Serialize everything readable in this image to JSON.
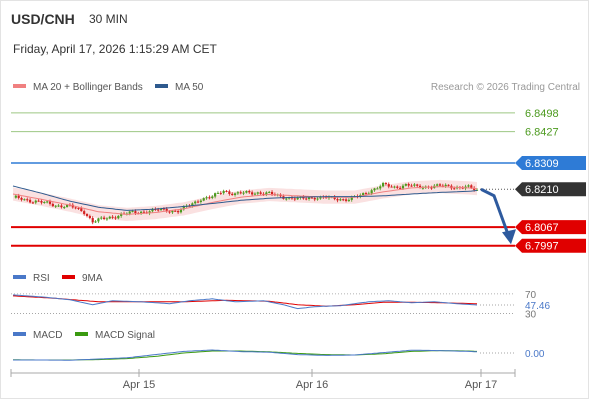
{
  "header": {
    "symbol": "USD/CNH",
    "timeframe": "30 MIN",
    "datetime": "Friday, April 17, 2026 1:15:29 AM CET",
    "credit": "Research © 2026 Trading Central"
  },
  "colors": {
    "ma20": "#f08080",
    "ma50": "#2e5a8e",
    "band_fill": "#f9d9d9",
    "resistance_green": "#4c9a1f",
    "pivot_blue": "#2e7bd6",
    "support_red": "#e00000",
    "last_price": "#333333",
    "arrow": "#2e5a9e",
    "candle_up": "#4c9a1f",
    "candle_down": "#d32020",
    "rsi": "#4a78c8",
    "rsi_ma": "#e00000",
    "macd": "#4a78c8",
    "macd_signal": "#3a9a10"
  },
  "chart_data": [
    {
      "type": "candlestick",
      "legend": [
        {
          "name": "MA 20 + Bollinger Bands",
          "color_key": "ma20"
        },
        {
          "name": "MA 50",
          "color_key": "ma50"
        }
      ],
      "x_tick_labels": [
        "Apr 15",
        "Apr 16",
        "Apr 17"
      ],
      "y_range": [
        6.7977,
        6.852
      ],
      "last_price": 6.821,
      "levels": [
        {
          "value": 6.8498,
          "label": "6.8498",
          "kind": "resistance_green"
        },
        {
          "value": 6.8427,
          "label": "6.8427",
          "kind": "resistance_green"
        },
        {
          "value": 6.8309,
          "label": "6.8309",
          "kind": "pivot_blue"
        },
        {
          "value": 6.8067,
          "label": "6.8067",
          "kind": "support_red"
        },
        {
          "value": 6.7997,
          "label": "6.7997",
          "kind": "support_red"
        }
      ],
      "last_label": "6.8210",
      "close_path": [
        [
          0,
          6.8178
        ],
        [
          5,
          6.817
        ],
        [
          10,
          6.816
        ],
        [
          15,
          6.815
        ],
        [
          20,
          6.8145
        ],
        [
          25,
          6.8125
        ],
        [
          28,
          6.8088
        ],
        [
          32,
          6.8098
        ],
        [
          38,
          6.8115
        ],
        [
          45,
          6.8125
        ],
        [
          52,
          6.8132
        ],
        [
          58,
          6.8128
        ],
        [
          62,
          6.8148
        ],
        [
          66,
          6.8175
        ],
        [
          70,
          6.818
        ],
        [
          74,
          6.8205
        ],
        [
          78,
          6.8192
        ],
        [
          82,
          6.8196
        ],
        [
          86,
          6.8198
        ],
        [
          90,
          6.8192
        ],
        [
          96,
          6.818
        ],
        [
          100,
          6.8172
        ],
        [
          106,
          6.818
        ],
        [
          112,
          6.8175
        ],
        [
          118,
          6.8172
        ],
        [
          122,
          6.8185
        ],
        [
          126,
          6.8208
        ],
        [
          130,
          6.8225
        ],
        [
          134,
          6.8218
        ],
        [
          138,
          6.8226
        ],
        [
          142,
          6.8218
        ],
        [
          148,
          6.8222
        ],
        [
          154,
          6.822
        ],
        [
          160,
          6.8216
        ],
        [
          163,
          6.8205
        ]
      ],
      "ma20_path": [
        [
          0,
          6.8192
        ],
        [
          10,
          6.8172
        ],
        [
          20,
          6.815
        ],
        [
          30,
          6.8125
        ],
        [
          40,
          6.8115
        ],
        [
          50,
          6.8122
        ],
        [
          60,
          6.8136
        ],
        [
          70,
          6.816
        ],
        [
          80,
          6.818
        ],
        [
          90,
          6.819
        ],
        [
          100,
          6.8185
        ],
        [
          110,
          6.818
        ],
        [
          120,
          6.818
        ],
        [
          130,
          6.82
        ],
        [
          140,
          6.8215
        ],
        [
          150,
          6.822
        ],
        [
          160,
          6.8215
        ],
        [
          163,
          6.8212
        ]
      ],
      "ma50_path": [
        [
          0,
          6.8222
        ],
        [
          10,
          6.8195
        ],
        [
          20,
          6.8165
        ],
        [
          30,
          6.8142
        ],
        [
          40,
          6.813
        ],
        [
          50,
          6.8135
        ],
        [
          60,
          6.8145
        ],
        [
          70,
          6.8156
        ],
        [
          80,
          6.8168
        ],
        [
          90,
          6.8176
        ],
        [
          100,
          6.818
        ],
        [
          110,
          6.8182
        ],
        [
          120,
          6.8182
        ],
        [
          130,
          6.8185
        ],
        [
          140,
          6.8192
        ],
        [
          150,
          6.8198
        ],
        [
          160,
          6.8202
        ],
        [
          163,
          6.8205
        ]
      ],
      "band_width": 0.0025,
      "forecast_arrow": {
        "from": 6.8208,
        "to": 6.804
      }
    },
    {
      "type": "line",
      "title": "RSI",
      "legend": [
        {
          "name": "RSI",
          "color_key": "rsi"
        },
        {
          "name": "9MA",
          "color_key": "rsi_ma"
        }
      ],
      "y_range": [
        25,
        80
      ],
      "reference_levels": [
        {
          "value": 70,
          "label": "70"
        },
        {
          "value": 30,
          "label": "30"
        }
      ],
      "last_value_label": "47.46",
      "rsi_path": [
        [
          0,
          68
        ],
        [
          10,
          64
        ],
        [
          20,
          58
        ],
        [
          28,
          48
        ],
        [
          35,
          56
        ],
        [
          45,
          54
        ],
        [
          55,
          50
        ],
        [
          62,
          56
        ],
        [
          70,
          60
        ],
        [
          78,
          54
        ],
        [
          88,
          56
        ],
        [
          95,
          48
        ],
        [
          100,
          40
        ],
        [
          106,
          44
        ],
        [
          115,
          46
        ],
        [
          125,
          54
        ],
        [
          132,
          56
        ],
        [
          140,
          52
        ],
        [
          148,
          54
        ],
        [
          156,
          50
        ],
        [
          163,
          47.46
        ]
      ],
      "rsi_ma_path": [
        [
          0,
          66
        ],
        [
          15,
          61
        ],
        [
          30,
          54
        ],
        [
          45,
          54
        ],
        [
          60,
          54
        ],
        [
          75,
          57
        ],
        [
          90,
          55
        ],
        [
          100,
          48
        ],
        [
          110,
          45
        ],
        [
          120,
          48
        ],
        [
          130,
          53
        ],
        [
          140,
          53
        ],
        [
          150,
          52
        ],
        [
          163,
          50
        ]
      ]
    },
    {
      "type": "line",
      "title": "MACD",
      "legend": [
        {
          "name": "MACD",
          "color_key": "macd"
        },
        {
          "name": "MACD Signal",
          "color_key": "macd_signal"
        }
      ],
      "y_range": [
        -0.0045,
        0.0045
      ],
      "zero_label": "0.00",
      "macd_path": [
        [
          0,
          -0.0035
        ],
        [
          10,
          -0.0035
        ],
        [
          20,
          -0.0036
        ],
        [
          30,
          -0.003
        ],
        [
          40,
          -0.0024
        ],
        [
          50,
          -0.0008
        ],
        [
          60,
          0.0008
        ],
        [
          70,
          0.0015
        ],
        [
          80,
          0.0007
        ],
        [
          90,
          0.0004
        ],
        [
          100,
          -0.0008
        ],
        [
          110,
          -0.0012
        ],
        [
          120,
          -0.001
        ],
        [
          130,
          0.0002
        ],
        [
          140,
          0.0014
        ],
        [
          150,
          0.0012
        ],
        [
          160,
          0.0008
        ],
        [
          163,
          0.0006
        ]
      ],
      "signal_path": [
        [
          0,
          -0.0034
        ],
        [
          10,
          -0.0035
        ],
        [
          20,
          -0.0035
        ],
        [
          30,
          -0.0033
        ],
        [
          40,
          -0.0028
        ],
        [
          50,
          -0.0017
        ],
        [
          60,
          0.0
        ],
        [
          70,
          0.001
        ],
        [
          80,
          0.001
        ],
        [
          90,
          0.0006
        ],
        [
          100,
          -0.0002
        ],
        [
          110,
          -0.0008
        ],
        [
          120,
          -0.001
        ],
        [
          130,
          -0.0004
        ],
        [
          140,
          0.0008
        ],
        [
          150,
          0.0012
        ],
        [
          160,
          0.001
        ],
        [
          163,
          0.0008
        ]
      ]
    }
  ]
}
